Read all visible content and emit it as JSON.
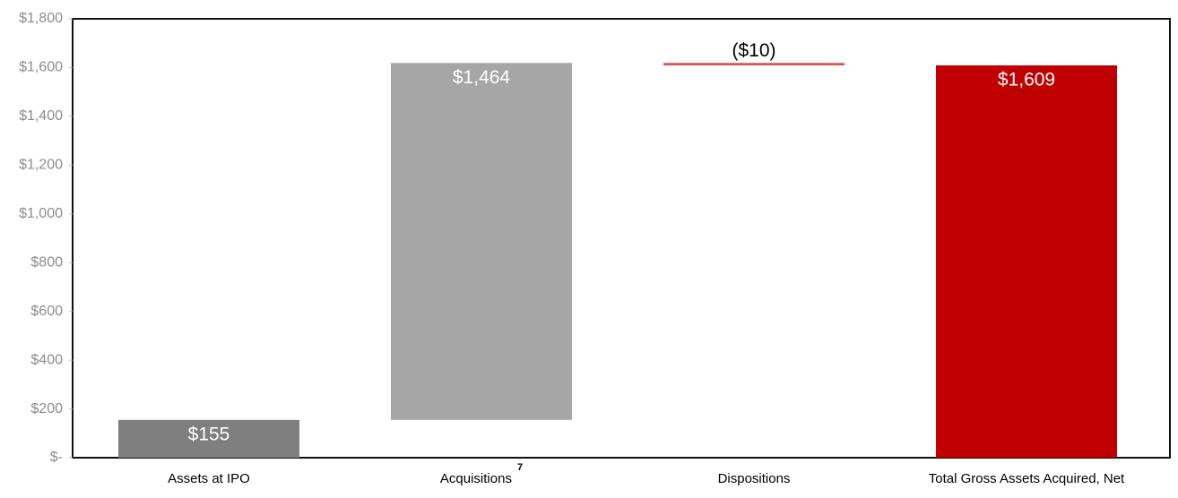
{
  "chart_data": {
    "type": "waterfall",
    "categories": [
      "Assets at IPO",
      "Acquisitions",
      "Dispositions",
      "Total Gross Assets Acquired, Net"
    ],
    "superscripts": [
      null,
      "7",
      null,
      null
    ],
    "measures": [
      "absolute",
      "relative",
      "relative",
      "total"
    ],
    "values": [
      155,
      1464,
      -10,
      1609
    ],
    "value_labels": [
      "$155",
      "$1,464",
      "($10)",
      "$1,609"
    ],
    "colors": [
      "#7f7f7f",
      "#a6a6a6",
      "#d9534f",
      "#c00000"
    ],
    "ylim": [
      0,
      1800
    ],
    "yticks": [
      {
        "value": 0,
        "label": "$-"
      },
      {
        "value": 200,
        "label": "$200"
      },
      {
        "value": 400,
        "label": "$400"
      },
      {
        "value": 600,
        "label": "$600"
      },
      {
        "value": 800,
        "label": "$800"
      },
      {
        "value": 1000,
        "label": "$1,000"
      },
      {
        "value": 1200,
        "label": "$1,200"
      },
      {
        "value": 1400,
        "label": "$1,400"
      },
      {
        "value": 1600,
        "label": "$1,600"
      },
      {
        "value": 1800,
        "label": "$1,800"
      }
    ],
    "grid": false
  }
}
